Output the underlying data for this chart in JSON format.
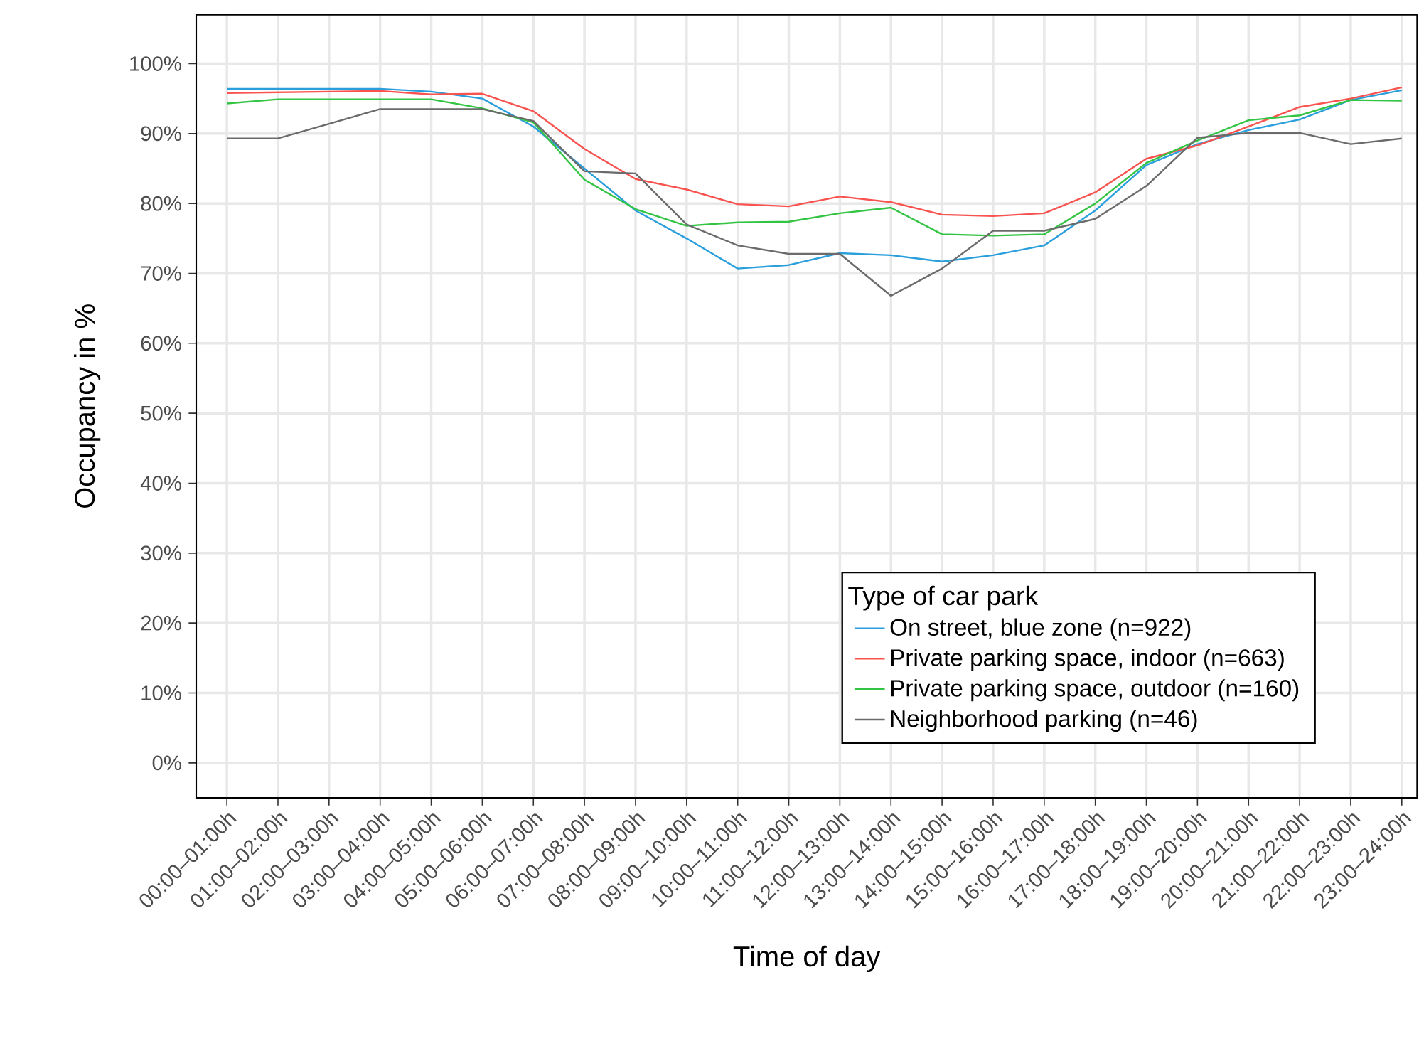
{
  "chart_data": {
    "type": "line",
    "xlabel": "Time of day",
    "ylabel": "Occupancy in %",
    "legend_title": "Type of car park",
    "categories": [
      "00:00–01:00h",
      "01:00–02:00h",
      "02:00–03:00h",
      "03:00–04:00h",
      "04:00–05:00h",
      "05:00–06:00h",
      "06:00–07:00h",
      "07:00–08:00h",
      "08:00–09:00h",
      "09:00–10:00h",
      "10:00–11:00h",
      "11:00–12:00h",
      "12:00–13:00h",
      "13:00–14:00h",
      "14:00–15:00h",
      "15:00–16:00h",
      "16:00–17:00h",
      "17:00–18:00h",
      "18:00–19:00h",
      "19:00–20:00h",
      "20:00–21:00h",
      "21:00–22:00h",
      "22:00–23:00h",
      "23:00–24:00h"
    ],
    "series": [
      {
        "name": "On street, blue zone (n=922)",
        "color": "#2a9fdc",
        "values": [
          96.4,
          96.4,
          96.4,
          96.4,
          96,
          95,
          91,
          85,
          79,
          75,
          70.7,
          71.2,
          72.9,
          72.6,
          71.7,
          72.6,
          74,
          79,
          85.5,
          88.5,
          90.5,
          92,
          94.8,
          96.2
        ]
      },
      {
        "name": "Private parking space, indoor (n=663)",
        "color": "#f8534f",
        "values": [
          95.8,
          95.9,
          96,
          96.1,
          95.6,
          95.7,
          93.2,
          87.8,
          83.5,
          82,
          79.9,
          79.6,
          81,
          80.2,
          78.4,
          78.2,
          78.6,
          81.6,
          86.4,
          88.3,
          91,
          93.8,
          95,
          96.6
        ]
      },
      {
        "name": "Private parking space, outdoor (n=160)",
        "color": "#33c443",
        "values": [
          94.3,
          94.9,
          94.9,
          94.9,
          94.9,
          93.6,
          91.6,
          83.4,
          79.2,
          76.8,
          77.3,
          77.4,
          78.6,
          79.4,
          75.6,
          75.4,
          75.6,
          80,
          85.8,
          89,
          91.9,
          92.6,
          94.8,
          94.7
        ]
      },
      {
        "name": "Neighborhood parking (n=46)",
        "color": "#6b6b6b",
        "values": [
          89.3,
          89.3,
          91.4,
          93.5,
          93.5,
          93.5,
          91.8,
          84.6,
          84.3,
          77,
          74,
          72.8,
          72.8,
          66.8,
          70.7,
          76.1,
          76.1,
          77.8,
          82.5,
          89.4,
          90.1,
          90.1,
          88.5,
          89.3
        ]
      }
    ],
    "ylim": [
      -5,
      107
    ],
    "yticks": [
      {
        "value": 0,
        "label": "0%"
      },
      {
        "value": 10,
        "label": "10%"
      },
      {
        "value": 20,
        "label": "20%"
      },
      {
        "value": 30,
        "label": "30%"
      },
      {
        "value": 40,
        "label": "40%"
      },
      {
        "value": 50,
        "label": "50%"
      },
      {
        "value": 60,
        "label": "60%"
      },
      {
        "value": 70,
        "label": "70%"
      },
      {
        "value": 80,
        "label": "80%"
      },
      {
        "value": 90,
        "label": "90%"
      },
      {
        "value": 100,
        "label": "100%"
      }
    ],
    "grid": true,
    "legend": "bottom right",
    "line_style": "solid",
    "marker": "none"
  }
}
